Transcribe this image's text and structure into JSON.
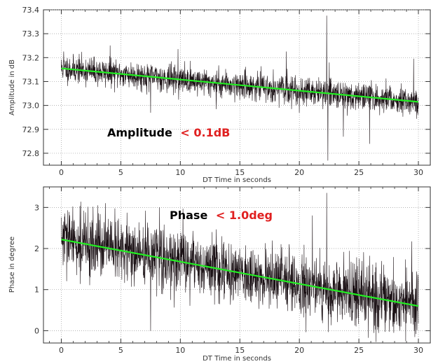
{
  "chart_data": [
    {
      "type": "line",
      "xlabel": "DT Time in seconds",
      "ylabel": "Amplitude in dB",
      "xlim": [
        -1.5,
        31
      ],
      "ylim": [
        72.75,
        73.4
      ],
      "x_ticks": [
        "0",
        "5",
        "10",
        "15",
        "20",
        "25",
        "30"
      ],
      "y_ticks": [
        "72.8",
        "72.9",
        "73.0",
        "73.1",
        "73.2",
        "73.3",
        "73.4"
      ],
      "grid": true,
      "annotation": {
        "prefix": "Amplitude",
        "value": "< 0.1dB"
      },
      "colors": {
        "data": "#1a1014",
        "fit": "#22ee22",
        "annotation_value": "#e02020"
      },
      "series": [
        {
          "kind": "noisy",
          "x_range": [
            0,
            30
          ],
          "trend": [
            73.155,
            73.015
          ],
          "noise": 0.028,
          "spikes": [
            {
              "x": 0.2,
              "y": 73.225
            },
            {
              "x": 4.1,
              "y": 73.25
            },
            {
              "x": 7.5,
              "y": 72.97
            },
            {
              "x": 9.8,
              "y": 73.235
            },
            {
              "x": 13.0,
              "y": 72.985
            },
            {
              "x": 18.9,
              "y": 73.225
            },
            {
              "x": 20.0,
              "y": 72.97
            },
            {
              "x": 22.3,
              "y": 73.375
            },
            {
              "x": 22.4,
              "y": 72.77
            },
            {
              "x": 23.7,
              "y": 72.87
            },
            {
              "x": 25.9,
              "y": 72.84
            },
            {
              "x": 29.6,
              "y": 73.195
            }
          ]
        },
        {
          "kind": "fit",
          "x": [
            0,
            30
          ],
          "y": [
            73.155,
            73.015
          ]
        }
      ]
    },
    {
      "type": "line",
      "xlabel": "DT Time in seconds",
      "ylabel": "Phase in degree",
      "xlim": [
        -1.5,
        31
      ],
      "ylim": [
        -0.3,
        3.5
      ],
      "x_ticks": [
        "0",
        "5",
        "10",
        "15",
        "20",
        "25",
        "30"
      ],
      "y_ticks": [
        "0",
        "1",
        "2",
        "3"
      ],
      "grid": true,
      "annotation": {
        "prefix": "Phase",
        "value": "< 1.0deg"
      },
      "colors": {
        "data": "#1a1014",
        "fit": "#22ee22",
        "annotation_value": "#e02020"
      },
      "series": [
        {
          "kind": "noisy",
          "x_range": [
            0,
            30
          ],
          "trend": [
            2.22,
            0.6
          ],
          "noise": 0.38,
          "spikes": [
            {
              "x": 0.3,
              "y": 2.85
            },
            {
              "x": 3.7,
              "y": 3.1
            },
            {
              "x": 7.5,
              "y": 0.0
            },
            {
              "x": 21.1,
              "y": 2.8
            },
            {
              "x": 22.3,
              "y": 3.35
            },
            {
              "x": 22.5,
              "y": 0.4
            },
            {
              "x": 29.7,
              "y": -0.15
            }
          ]
        },
        {
          "kind": "fit",
          "x": [
            0,
            30
          ],
          "y": [
            2.22,
            0.6
          ]
        }
      ]
    }
  ]
}
